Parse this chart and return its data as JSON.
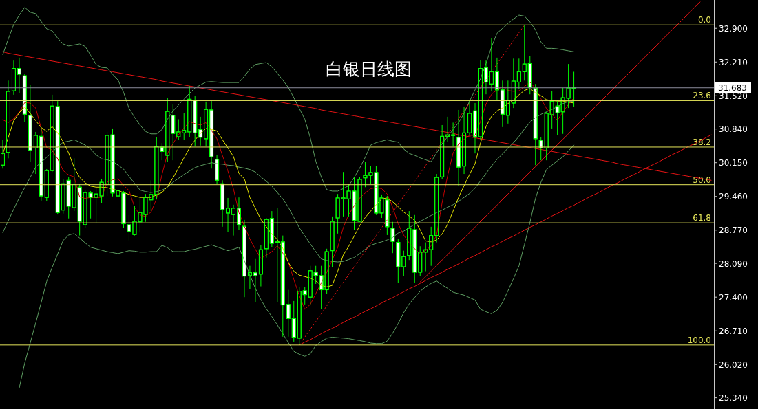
{
  "chart_data": {
    "type": "candlestick",
    "title": "白银日线图",
    "tick_labels": "y",
    "categories": [
      null,
      null,
      null,
      null,
      null,
      null,
      null,
      null,
      null,
      null,
      null,
      null,
      null,
      null,
      null,
      null,
      null,
      null,
      null,
      null,
      null,
      null,
      null,
      null,
      null,
      null,
      null,
      null,
      null,
      null,
      null,
      null,
      null,
      null,
      null,
      null,
      null,
      null,
      null,
      null,
      null,
      null,
      null,
      null,
      null,
      null,
      null,
      null,
      null,
      null,
      null,
      null,
      null,
      null,
      null,
      null,
      null,
      null,
      null,
      null,
      null,
      null,
      null,
      null,
      null,
      null,
      null,
      null,
      null,
      null,
      null,
      null,
      null,
      null,
      null,
      null,
      null,
      null,
      null,
      null,
      null,
      null,
      null,
      null,
      null,
      null,
      null,
      null,
      null,
      null,
      null,
      null,
      null,
      null,
      null,
      null,
      null,
      null,
      null,
      null,
      null,
      null,
      null,
      null,
      null,
      null,
      null,
      null,
      null,
      null,
      null,
      null,
      null,
      null,
      null,
      null,
      null,
      null,
      null,
      null,
      null,
      null,
      null,
      null,
      null,
      null,
      null,
      null,
      null,
      null
    ],
    "ylim": [
      25.18,
      33.48
    ],
    "yticks": [
      {
        "value": 32.9,
        "label": "32.900"
      },
      {
        "value": 32.21,
        "label": "32.210"
      },
      {
        "value": 31.52,
        "label": "31.520"
      },
      {
        "value": 30.84,
        "label": "30.840"
      },
      {
        "value": 30.15,
        "label": "30.150"
      },
      {
        "value": 29.46,
        "label": "29.460"
      },
      {
        "value": 28.77,
        "label": "28.770"
      },
      {
        "value": 28.09,
        "label": "28.090"
      },
      {
        "value": 27.4,
        "label": "27.400"
      },
      {
        "value": 26.71,
        "label": "26.710"
      },
      {
        "value": 26.02,
        "label": "26.020"
      },
      {
        "value": 25.34,
        "label": "25.340"
      }
    ],
    "ref_lines": [
      {
        "axis": "y",
        "value": 31.683,
        "label": "31.683",
        "color": "#8c8c9c"
      },
      {
        "axis": "y",
        "value": 32.97,
        "color": "#e6e65a"
      },
      {
        "axis": "y",
        "value": 31.42,
        "color": "#e6e65a"
      },
      {
        "axis": "y",
        "value": 30.47,
        "color": "#e6e65a"
      },
      {
        "axis": "y",
        "value": 29.7,
        "color": "#e6e65a"
      },
      {
        "axis": "y",
        "value": 28.92,
        "color": "#e6e65a"
      },
      {
        "axis": "y",
        "value": 26.42,
        "color": "#e6e65a"
      }
    ],
    "annotations": [
      {
        "text": "0.0",
        "y": 32.97
      },
      {
        "text": "23.6",
        "y": 31.42
      },
      {
        "text": "38.2",
        "y": 30.47
      },
      {
        "text": "50.0",
        "y": 29.7
      },
      {
        "text": "61.8",
        "y": 28.92
      },
      {
        "text": "100.0",
        "y": 26.42
      }
    ],
    "series": [
      {
        "color": "#00ff00",
        "ohlc": [
          [
            30.1,
            30.62,
            30.03,
            30.34
          ],
          [
            30.36,
            31.83,
            30.24,
            31.61
          ],
          [
            31.62,
            32.24,
            31.54,
            32.08
          ],
          [
            32.08,
            32.3,
            31.58,
            31.96
          ],
          [
            31.93,
            31.96,
            30.99,
            31.14
          ],
          [
            31.12,
            31.75,
            30.17,
            30.4
          ],
          [
            30.45,
            30.78,
            29.92,
            30.71
          ],
          [
            30.69,
            30.85,
            29.36,
            29.47
          ],
          [
            29.44,
            30.02,
            29.36,
            29.99
          ],
          [
            29.99,
            31.54,
            29.96,
            31.31
          ],
          [
            31.3,
            31.41,
            29.09,
            29.13
          ],
          [
            29.18,
            29.82,
            29.11,
            29.72
          ],
          [
            29.79,
            29.86,
            29.01,
            29.26
          ],
          [
            29.23,
            30.24,
            29.16,
            29.71
          ],
          [
            29.65,
            29.72,
            28.66,
            28.95
          ],
          [
            28.88,
            29.58,
            28.81,
            29.54
          ],
          [
            29.53,
            29.57,
            29.01,
            29.44
          ],
          [
            29.44,
            29.65,
            28.91,
            29.51
          ],
          [
            29.47,
            29.82,
            29.33,
            29.75
          ],
          [
            29.71,
            30.78,
            29.47,
            30.71
          ],
          [
            30.72,
            30.85,
            29.46,
            29.53
          ],
          [
            29.47,
            29.72,
            29.33,
            29.58
          ],
          [
            29.53,
            29.57,
            28.81,
            28.9
          ],
          [
            28.88,
            29.08,
            28.56,
            28.74
          ],
          [
            28.68,
            29.26,
            28.66,
            28.95
          ],
          [
            28.94,
            29.43,
            28.74,
            29.13
          ],
          [
            29.09,
            29.51,
            28.94,
            29.44
          ],
          [
            29.39,
            29.79,
            29.16,
            29.5
          ],
          [
            29.5,
            30.67,
            29.4,
            30.48
          ],
          [
            30.47,
            30.55,
            30.2,
            30.38
          ],
          [
            30.3,
            31.48,
            30.17,
            31.2
          ],
          [
            31.12,
            31.34,
            30.2,
            30.75
          ],
          [
            30.68,
            31.04,
            30.62,
            30.78
          ],
          [
            30.76,
            31.16,
            30.62,
            30.81
          ],
          [
            30.78,
            31.72,
            30.67,
            31.45
          ],
          [
            31.42,
            31.51,
            30.48,
            30.76
          ],
          [
            30.83,
            31.09,
            30.5,
            30.67
          ],
          [
            30.64,
            31.4,
            30.48,
            31.24
          ],
          [
            31.23,
            31.41,
            30.03,
            30.27
          ],
          [
            30.22,
            30.31,
            29.72,
            29.79
          ],
          [
            29.72,
            29.79,
            28.84,
            29.19
          ],
          [
            29.12,
            29.43,
            28.73,
            29.22
          ],
          [
            29.09,
            29.29,
            28.66,
            29.22
          ],
          [
            29.22,
            29.44,
            28.77,
            28.88
          ],
          [
            28.85,
            28.98,
            27.4,
            27.83
          ],
          [
            27.84,
            28.04,
            27.57,
            27.9
          ],
          [
            27.9,
            28.18,
            27.29,
            27.84
          ],
          [
            27.87,
            28.46,
            27.62,
            28.37
          ],
          [
            28.39,
            29.02,
            28.21,
            28.99
          ],
          [
            29.01,
            29.16,
            28.42,
            28.5
          ],
          [
            28.52,
            29.22,
            27.29,
            28.53
          ],
          [
            28.53,
            28.66,
            26.59,
            27.24
          ],
          [
            27.25,
            27.55,
            26.59,
            26.96
          ],
          [
            26.96,
            27.32,
            26.49,
            26.58
          ],
          [
            26.56,
            27.6,
            26.42,
            27.52
          ],
          [
            27.53,
            27.6,
            27.25,
            27.45
          ],
          [
            27.4,
            28.04,
            27.25,
            27.94
          ],
          [
            27.91,
            28.04,
            27.67,
            27.84
          ],
          [
            27.84,
            28.04,
            27.15,
            27.55
          ],
          [
            27.55,
            28.39,
            27.46,
            28.33
          ],
          [
            28.35,
            29.05,
            28.02,
            28.95
          ],
          [
            29.02,
            29.51,
            28.7,
            29.43
          ],
          [
            29.41,
            29.96,
            29.05,
            29.43
          ],
          [
            29.41,
            29.71,
            29.05,
            29.57
          ],
          [
            29.57,
            29.85,
            28.77,
            28.97
          ],
          [
            28.95,
            29.85,
            28.94,
            29.81
          ],
          [
            29.84,
            30.17,
            29.65,
            29.89
          ],
          [
            29.89,
            30.08,
            29.71,
            29.95
          ],
          [
            29.95,
            30.08,
            29.08,
            29.12
          ],
          [
            29.12,
            29.5,
            29.02,
            29.43
          ],
          [
            29.39,
            29.47,
            28.67,
            28.84
          ],
          [
            28.81,
            28.94,
            28.3,
            28.54
          ],
          [
            28.52,
            28.59,
            27.69,
            28.02
          ],
          [
            28.02,
            28.35,
            27.83,
            28.23
          ],
          [
            28.25,
            29.16,
            28.16,
            28.81
          ],
          [
            28.78,
            29.08,
            27.69,
            27.91
          ],
          [
            27.91,
            28.44,
            27.83,
            28.32
          ],
          [
            28.32,
            28.52,
            27.93,
            28.37
          ],
          [
            28.37,
            28.84,
            28.04,
            28.66
          ],
          [
            28.66,
            29.92,
            28.52,
            29.85
          ],
          [
            29.86,
            30.92,
            29.82,
            30.69
          ],
          [
            30.69,
            31.09,
            30.57,
            30.72
          ],
          [
            30.71,
            30.97,
            30.48,
            30.72
          ],
          [
            30.67,
            31.23,
            29.68,
            30.06
          ],
          [
            30.08,
            31.3,
            29.92,
            30.76
          ],
          [
            30.76,
            31.42,
            30.71,
            31.16
          ],
          [
            31.21,
            31.37,
            30.34,
            30.68
          ],
          [
            30.68,
            32.25,
            30.62,
            32.08
          ],
          [
            32.1,
            32.24,
            31.55,
            31.8
          ],
          [
            31.76,
            32.7,
            31.62,
            32.01
          ],
          [
            32.01,
            32.3,
            31.44,
            31.64
          ],
          [
            31.64,
            31.83,
            30.88,
            31.14
          ],
          [
            31.12,
            31.83,
            30.95,
            31.42
          ],
          [
            31.37,
            32.28,
            31.27,
            31.82
          ],
          [
            31.8,
            32.28,
            31.65,
            32.01
          ],
          [
            32.01,
            32.97,
            31.83,
            32.17
          ],
          [
            32.18,
            32.34,
            31.55,
            31.69
          ],
          [
            31.68,
            31.76,
            30.1,
            30.64
          ],
          [
            30.61,
            30.67,
            30.2,
            30.45
          ],
          [
            30.45,
            31.19,
            30.2,
            31.16
          ],
          [
            31.13,
            31.62,
            30.85,
            31.41
          ],
          [
            31.31,
            31.44,
            30.71,
            31.17
          ],
          [
            31.19,
            31.68,
            30.74,
            31.48
          ],
          [
            31.47,
            32.17,
            31.27,
            31.68
          ],
          [
            31.67,
            32.01,
            31.3,
            31.683
          ],
          null,
          null,
          null,
          null,
          null,
          null,
          null,
          null,
          null,
          null,
          null,
          null,
          null,
          null,
          null,
          null,
          null,
          null,
          null,
          null,
          null,
          null,
          null,
          null,
          null
        ]
      },
      {
        "type": "line",
        "color": "#5e9e62",
        "values": [
          32.36,
          32.68,
          32.98,
          33.17,
          33.33,
          33.23,
          33.2,
          33.04,
          32.89,
          32.85,
          32.7,
          32.58,
          32.54,
          32.56,
          32.58,
          32.53,
          32.35,
          32.16,
          32.1,
          32.09,
          31.96,
          31.84,
          31.59,
          31.26,
          31.08,
          30.92,
          30.79,
          30.74,
          30.74,
          30.83,
          31.04,
          31.21,
          31.33,
          31.45,
          31.57,
          31.68,
          31.74,
          31.8,
          31.81,
          31.8,
          31.79,
          31.79,
          31.79,
          31.79,
          31.92,
          32.06,
          32.16,
          32.18,
          32.2,
          32.11,
          31.98,
          31.84,
          31.69,
          31.48,
          31.26,
          31.04,
          30.66,
          30.18,
          29.86,
          29.6,
          29.57,
          29.57,
          29.62,
          29.68,
          29.85,
          30.04,
          30.26,
          30.51,
          30.56,
          30.59,
          30.62,
          30.59,
          30.57,
          30.43,
          30.34,
          30.3,
          30.25,
          30.21,
          30.17,
          30.35,
          30.54,
          30.68,
          30.83,
          30.97,
          31.16,
          31.41,
          31.64,
          31.87,
          32.18,
          32.52,
          32.8,
          32.9,
          33.0,
          33.09,
          33.17,
          33.15,
          33.03,
          32.87,
          32.62,
          32.49,
          32.49,
          32.48,
          32.46,
          32.44,
          32.42,
          null,
          null,
          null,
          null,
          null,
          null,
          null,
          null,
          null,
          null,
          null,
          null,
          null,
          null,
          null,
          null,
          null,
          null,
          null,
          null,
          null,
          null,
          null,
          null,
          null
        ]
      },
      {
        "type": "line",
        "color": "#5e9e62",
        "values": [
          28.72,
          28.96,
          29.2,
          29.43,
          29.64,
          29.85,
          30.06,
          30.16,
          30.26,
          30.37,
          30.47,
          30.57,
          30.59,
          30.62,
          30.57,
          30.51,
          30.43,
          30.31,
          30.23,
          30.21,
          30.18,
          30.1,
          30.02,
          29.87,
          29.73,
          29.59,
          29.56,
          29.54,
          29.56,
          29.59,
          29.65,
          29.75,
          29.83,
          29.91,
          29.98,
          30.05,
          30.09,
          30.12,
          30.15,
          30.13,
          30.12,
          30.1,
          30.09,
          30.06,
          30.04,
          30.01,
          29.96,
          29.86,
          29.77,
          29.67,
          29.54,
          29.41,
          29.24,
          29.03,
          28.82,
          28.65,
          28.49,
          28.33,
          28.18,
          28.15,
          28.13,
          28.12,
          28.13,
          28.17,
          28.21,
          28.29,
          28.38,
          28.46,
          28.5,
          28.53,
          28.57,
          28.62,
          28.71,
          28.75,
          28.82,
          28.89,
          28.95,
          29.01,
          29.07,
          29.13,
          29.18,
          29.24,
          29.29,
          29.36,
          29.44,
          29.52,
          29.63,
          29.78,
          29.93,
          30.08,
          30.22,
          30.33,
          30.45,
          30.56,
          30.69,
          30.84,
          30.98,
          31.07,
          31.14,
          31.19,
          31.24,
          31.3,
          31.36,
          31.4,
          31.41,
          null,
          null,
          null,
          null,
          null,
          null,
          null,
          null,
          null,
          null,
          null,
          null,
          null,
          null,
          null,
          null,
          null,
          null,
          null,
          null,
          null,
          null,
          null,
          null,
          null
        ]
      },
      {
        "type": "line",
        "color": "#5e9e62",
        "values": [
          null,
          null,
          null,
          25.54,
          26.05,
          26.46,
          26.87,
          27.29,
          27.72,
          28.01,
          28.28,
          28.56,
          28.67,
          28.7,
          28.61,
          28.51,
          28.42,
          28.39,
          28.36,
          28.33,
          28.31,
          28.29,
          28.32,
          28.35,
          28.34,
          28.32,
          28.32,
          28.33,
          28.33,
          28.46,
          28.41,
          28.33,
          28.33,
          28.33,
          28.36,
          28.38,
          28.41,
          28.44,
          28.47,
          28.43,
          28.39,
          28.35,
          28.38,
          28.42,
          28.15,
          27.85,
          27.58,
          27.35,
          27.16,
          27.0,
          26.83,
          26.65,
          26.47,
          26.29,
          26.23,
          26.19,
          26.24,
          26.41,
          26.49,
          26.56,
          26.58,
          26.57,
          26.56,
          26.55,
          26.53,
          26.51,
          26.49,
          26.46,
          26.45,
          26.45,
          26.5,
          26.66,
          26.86,
          27.08,
          27.26,
          27.39,
          27.52,
          27.61,
          27.68,
          27.73,
          27.65,
          27.58,
          27.5,
          27.47,
          27.44,
          27.39,
          27.34,
          27.15,
          27.1,
          27.06,
          27.13,
          27.29,
          27.53,
          27.78,
          28.04,
          28.48,
          28.93,
          29.42,
          29.75,
          30.01,
          30.1,
          30.19,
          30.27,
          30.39,
          30.51,
          null,
          null,
          null,
          null,
          null,
          null,
          null,
          null,
          null,
          null,
          null,
          null,
          null,
          null,
          null,
          null,
          null,
          null,
          null,
          null,
          null,
          null,
          null,
          null,
          null
        ]
      },
      {
        "type": "line",
        "color": "#c80000",
        "values": [
          31.03,
          30.97,
          31.05,
          31.18,
          31.38,
          31.37,
          31.27,
          30.85,
          30.46,
          30.41,
          30.23,
          29.99,
          29.9,
          29.86,
          29.45,
          29.42,
          29.44,
          29.44,
          29.44,
          29.75,
          29.8,
          29.82,
          29.69,
          29.58,
          29.24,
          29.08,
          29.05,
          29.14,
          29.41,
          29.91,
          30.34,
          30.54,
          30.72,
          30.86,
          30.99,
          30.95,
          30.92,
          30.97,
          30.81,
          30.64,
          30.3,
          29.98,
          29.62,
          29.13,
          28.85,
          28.59,
          28.38,
          28.19,
          28.26,
          28.33,
          28.45,
          28.3,
          28.12,
          27.76,
          27.43,
          27.15,
          27.25,
          27.47,
          27.69,
          27.91,
          28.16,
          28.42,
          28.82,
          29.09,
          29.27,
          29.43,
          29.53,
          29.62,
          29.64,
          29.62,
          29.51,
          29.24,
          28.9,
          28.67,
          28.51,
          28.39,
          28.28,
          28.35,
          28.45,
          28.67,
          29.33,
          29.88,
          30.35,
          30.53,
          30.63,
          30.71,
          30.71,
          31.0,
          31.35,
          31.55,
          31.64,
          31.71,
          31.63,
          31.61,
          31.62,
          31.71,
          31.8,
          31.67,
          31.46,
          31.26,
          31.14,
          31.02,
          31.19,
          31.34,
          31.48,
          null,
          null,
          null,
          null,
          null,
          null,
          null,
          null,
          null,
          null,
          null,
          null,
          null,
          null,
          null,
          null,
          null,
          null,
          null,
          null,
          null,
          null,
          null,
          null,
          null
        ]
      },
      {
        "type": "line",
        "color": "#e6e600",
        "values": [
          30.33,
          30.67,
          31.01,
          31.17,
          31.29,
          31.16,
          31.01,
          30.87,
          30.79,
          30.89,
          30.76,
          30.58,
          30.35,
          30.05,
          29.85,
          29.74,
          29.67,
          29.65,
          29.65,
          29.64,
          29.61,
          29.58,
          29.54,
          29.5,
          29.47,
          29.44,
          29.44,
          29.44,
          29.49,
          29.54,
          29.66,
          29.84,
          30.04,
          30.25,
          30.45,
          30.61,
          30.75,
          30.85,
          30.83,
          30.8,
          30.62,
          30.45,
          30.28,
          29.93,
          29.82,
          29.44,
          29.22,
          28.99,
          28.84,
          28.69,
          28.58,
          28.4,
          28.11,
          27.93,
          27.85,
          27.82,
          27.79,
          27.73,
          27.64,
          27.61,
          27.64,
          27.93,
          28.26,
          28.44,
          28.65,
          28.86,
          29.03,
          29.16,
          29.29,
          29.41,
          29.43,
          29.35,
          29.25,
          29.14,
          29.06,
          28.97,
          28.78,
          28.55,
          28.53,
          28.57,
          28.69,
          28.89,
          29.16,
          29.44,
          29.68,
          29.91,
          30.13,
          30.56,
          30.89,
          31.1,
          31.21,
          31.27,
          31.36,
          31.43,
          31.54,
          31.63,
          31.67,
          31.58,
          31.52,
          31.44,
          31.42,
          31.41,
          31.41,
          31.39,
          31.37,
          null,
          null,
          null,
          null,
          null,
          null,
          null,
          null,
          null,
          null,
          null,
          null,
          null,
          null,
          null,
          null,
          null,
          null,
          null,
          null,
          null,
          null,
          null,
          null,
          null
        ]
      },
      {
        "type": "line",
        "color": "#e81414",
        "values": [
          32.42,
          32.39,
          32.37,
          32.35,
          32.33,
          32.31,
          32.29,
          32.27,
          32.25,
          32.23,
          32.21,
          32.19,
          32.17,
          32.15,
          32.13,
          32.11,
          32.09,
          32.07,
          32.05,
          32.03,
          32.01,
          31.99,
          31.97,
          31.95,
          31.93,
          31.91,
          31.89,
          31.87,
          31.85,
          31.82,
          31.8,
          31.78,
          31.76,
          31.74,
          31.72,
          31.7,
          31.68,
          31.66,
          31.64,
          31.62,
          31.6,
          31.58,
          31.56,
          31.54,
          31.52,
          31.5,
          31.48,
          31.46,
          31.44,
          31.42,
          31.4,
          31.38,
          31.36,
          31.34,
          31.32,
          31.3,
          31.28,
          31.26,
          31.23,
          31.21,
          31.19,
          31.17,
          31.15,
          31.13,
          31.11,
          31.09,
          31.07,
          31.05,
          31.03,
          31.01,
          30.99,
          30.97,
          30.95,
          30.93,
          30.91,
          30.89,
          30.87,
          30.85,
          30.83,
          30.81,
          30.79,
          30.77,
          30.75,
          30.72,
          30.7,
          30.68,
          30.66,
          30.64,
          30.62,
          30.6,
          30.58,
          30.56,
          30.54,
          30.52,
          30.5,
          30.48,
          30.46,
          30.44,
          30.42,
          30.4,
          30.38,
          30.36,
          30.34,
          30.32,
          30.3,
          30.28,
          30.26,
          30.24,
          30.22,
          30.2,
          30.18,
          30.16,
          30.13,
          30.11,
          30.09,
          30.07,
          30.05,
          30.03,
          30.01,
          29.99,
          29.97,
          29.95,
          29.93,
          29.91,
          29.89,
          29.87,
          29.85,
          29.83,
          29.81,
          29.79
        ]
      },
      {
        "type": "line",
        "color": "#e81414",
        "values": [
          null,
          null,
          null,
          null,
          null,
          null,
          null,
          null,
          null,
          null,
          null,
          null,
          null,
          null,
          null,
          null,
          null,
          null,
          null,
          null,
          null,
          null,
          null,
          null,
          null,
          null,
          null,
          null,
          null,
          null,
          null,
          null,
          null,
          null,
          null,
          null,
          null,
          null,
          null,
          null,
          null,
          null,
          null,
          null,
          null,
          null,
          null,
          null,
          null,
          null,
          null,
          null,
          null,
          null,
          26.42,
          26.48,
          26.53,
          26.59,
          26.65,
          26.71,
          26.76,
          26.82,
          26.88,
          26.94,
          26.99,
          27.05,
          27.11,
          27.16,
          27.22,
          27.28,
          27.34,
          27.39,
          27.45,
          27.51,
          27.57,
          27.62,
          27.68,
          27.74,
          27.8,
          27.85,
          27.91,
          27.97,
          28.02,
          28.08,
          28.14,
          28.2,
          28.25,
          28.31,
          28.37,
          28.43,
          28.48,
          28.54,
          28.6,
          28.65,
          28.71,
          28.77,
          28.83,
          28.88,
          28.94,
          29.0,
          29.06,
          29.11,
          29.17,
          29.23,
          29.28,
          29.34,
          29.4,
          29.46,
          29.51,
          29.57,
          29.63,
          29.69,
          29.74,
          29.8,
          29.86,
          29.91,
          29.97,
          30.03,
          30.09,
          30.14,
          30.2,
          30.26,
          30.32,
          30.37,
          30.43,
          30.49,
          30.54,
          30.6,
          30.66,
          30.72
        ]
      },
      {
        "type": "line",
        "color": "#e81414",
        "values": [
          null,
          null,
          null,
          null,
          null,
          null,
          null,
          null,
          null,
          null,
          null,
          null,
          null,
          null,
          null,
          null,
          null,
          null,
          null,
          null,
          null,
          null,
          null,
          null,
          null,
          null,
          null,
          null,
          null,
          null,
          null,
          null,
          null,
          null,
          null,
          null,
          null,
          null,
          null,
          null,
          null,
          null,
          null,
          null,
          null,
          null,
          null,
          null,
          null,
          null,
          null,
          null,
          null,
          null,
          null,
          null,
          null,
          null,
          null,
          null,
          null,
          null,
          null,
          null,
          null,
          null,
          null,
          null,
          null,
          null,
          null,
          null,
          null,
          null,
          null,
          null,
          27.71,
          27.82,
          27.93,
          28.05,
          28.16,
          28.27,
          28.38,
          28.5,
          28.61,
          28.72,
          28.83,
          28.95,
          29.06,
          29.17,
          29.28,
          29.4,
          29.51,
          29.62,
          29.73,
          29.85,
          29.96,
          30.07,
          30.18,
          30.3,
          30.41,
          30.52,
          30.63,
          30.74,
          30.86,
          30.97,
          31.08,
          31.19,
          31.31,
          31.42,
          31.53,
          31.64,
          31.76,
          31.87,
          31.98,
          32.09,
          32.21,
          32.32,
          32.43,
          32.54,
          32.66,
          32.77,
          32.88,
          32.99,
          33.1,
          33.22,
          33.33,
          33.44,
          null,
          null
        ]
      },
      {
        "type": "line",
        "color": "#e81414",
        "line_style": "dotted",
        "values": [
          null,
          null,
          null,
          null,
          null,
          null,
          null,
          null,
          null,
          null,
          null,
          null,
          null,
          null,
          null,
          null,
          null,
          null,
          null,
          null,
          null,
          null,
          null,
          null,
          null,
          null,
          null,
          null,
          null,
          null,
          null,
          null,
          null,
          null,
          null,
          null,
          null,
          null,
          null,
          null,
          null,
          null,
          null,
          null,
          null,
          null,
          null,
          null,
          null,
          null,
          null,
          null,
          null,
          null,
          26.42,
          26.58,
          26.74,
          26.9,
          27.06,
          27.22,
          27.38,
          27.54,
          27.7,
          27.86,
          28.02,
          28.18,
          28.34,
          28.5,
          28.66,
          28.82,
          28.98,
          29.14,
          29.3,
          29.46,
          29.62,
          29.77,
          29.93,
          30.09,
          30.25,
          30.41,
          30.57,
          30.73,
          30.89,
          31.05,
          31.21,
          31.37,
          31.53,
          31.69,
          31.85,
          32.01,
          32.17,
          32.33,
          32.49,
          32.65,
          32.81,
          32.97,
          null,
          null,
          null,
          null,
          null,
          null,
          null,
          null,
          null,
          null,
          null,
          null,
          null,
          null,
          null,
          null,
          null,
          null,
          null,
          null,
          null,
          null,
          null,
          null,
          null,
          null,
          null,
          null,
          null,
          null,
          null,
          null,
          null,
          null
        ]
      }
    ]
  }
}
